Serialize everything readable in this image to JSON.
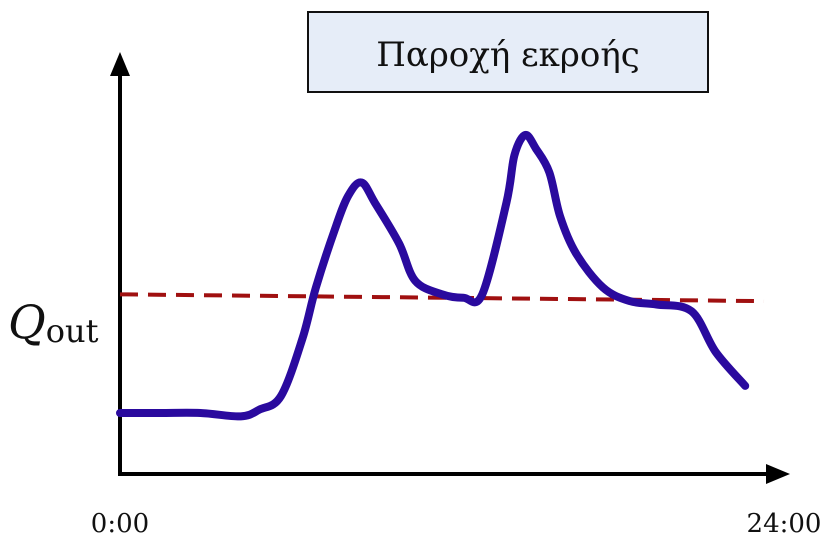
{
  "chart_data": {
    "type": "line",
    "title": "Παροχή εκροής",
    "xlabel": "",
    "ylabel": "",
    "x_tick_labels": [
      "0:00",
      "24:00"
    ],
    "xlim": [
      0,
      24
    ],
    "ylim": [
      0,
      10
    ],
    "grid": false,
    "reference_line": {
      "label_main": "Q",
      "label_sub": "out",
      "values": [
        5.3,
        5.1
      ],
      "color": "#a01010"
    },
    "series": [
      {
        "color": "#2a0a9e",
        "x": [
          0.0,
          1.5,
          3.0,
          4.5,
          5.2,
          6.0,
          6.8,
          7.3,
          8.0,
          8.5,
          9.0,
          9.5,
          10.4,
          11.0,
          12.0,
          12.8,
          13.5,
          14.4,
          14.7,
          15.1,
          15.5,
          16.0,
          16.4,
          17.0,
          18.0,
          19.0,
          20.0,
          21.3,
          22.2,
          23.3
        ],
        "y": [
          1.8,
          1.8,
          1.8,
          1.7,
          1.9,
          2.3,
          4.0,
          5.5,
          7.2,
          8.2,
          8.6,
          8.0,
          6.8,
          5.7,
          5.3,
          5.2,
          5.3,
          8.0,
          9.4,
          10.0,
          9.6,
          8.9,
          7.6,
          6.5,
          5.5,
          5.1,
          5.0,
          4.8,
          3.6,
          2.6
        ]
      }
    ]
  }
}
